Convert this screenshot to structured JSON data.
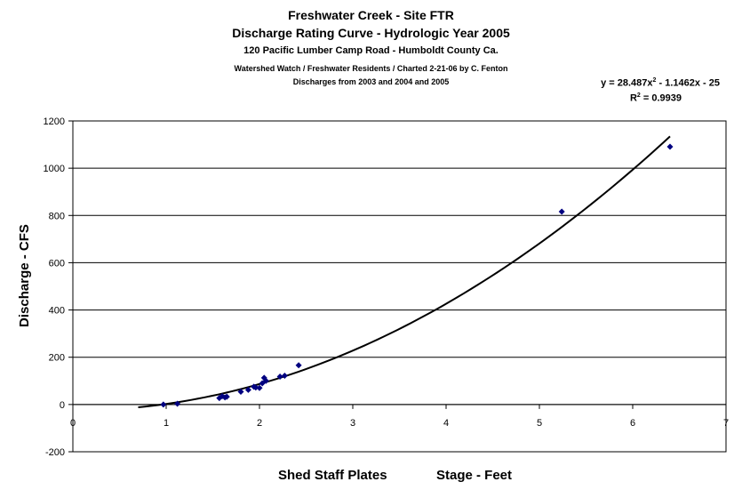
{
  "titles": {
    "line1": "Freshwater Creek - Site FTR",
    "line2": "Discharge Rating Curve - Hydrologic Year 2005",
    "line3": "120 Pacific Lumber Camp Road - Humboldt County Ca.",
    "line4": "Watershed Watch / Freshwater Residents / Charted 2-21-06 by C. Fenton",
    "line5": "Discharges from 2003 and 2004 and 2005"
  },
  "trendline_label": {
    "equation_prefix": "y = 28.487x",
    "equation_suffix": " - 1.1462x - 25",
    "exponent": "2",
    "r2_prefix": "R",
    "r2_suffix": " = 0.9939"
  },
  "xlabel_left": "Shed Staff Plates",
  "xlabel_right": "Stage - Feet",
  "chart_data": {
    "type": "scatter",
    "ylabel": "Discharge - CFS",
    "xlim": [
      0,
      7
    ],
    "ylim": [
      -200,
      1200
    ],
    "xticks": [
      "0",
      "1",
      "2",
      "3",
      "4",
      "5",
      "6",
      "7"
    ],
    "yticks": [
      "-200",
      "0",
      "200",
      "400",
      "600",
      "800",
      "1000",
      "1200"
    ],
    "grid": "horizontal",
    "marker_color": "#000080",
    "line_color": "#000000",
    "points": {
      "x": [
        0.97,
        1.12,
        1.57,
        1.6,
        1.63,
        1.65,
        1.8,
        1.88,
        1.94,
        1.96,
        2.0,
        2.03,
        2.05,
        2.07,
        2.22,
        2.27,
        2.42,
        5.24,
        6.4
      ],
      "y": [
        0,
        3,
        27,
        35,
        30,
        33,
        54,
        62,
        75,
        72,
        70,
        90,
        113,
        100,
        118,
        122,
        166,
        816,
        1091
      ]
    },
    "trendline": {
      "type": "polynomial",
      "coefficients": [
        28.487,
        -1.1462,
        -25
      ],
      "x_range": [
        0.7,
        6.4
      ]
    }
  }
}
